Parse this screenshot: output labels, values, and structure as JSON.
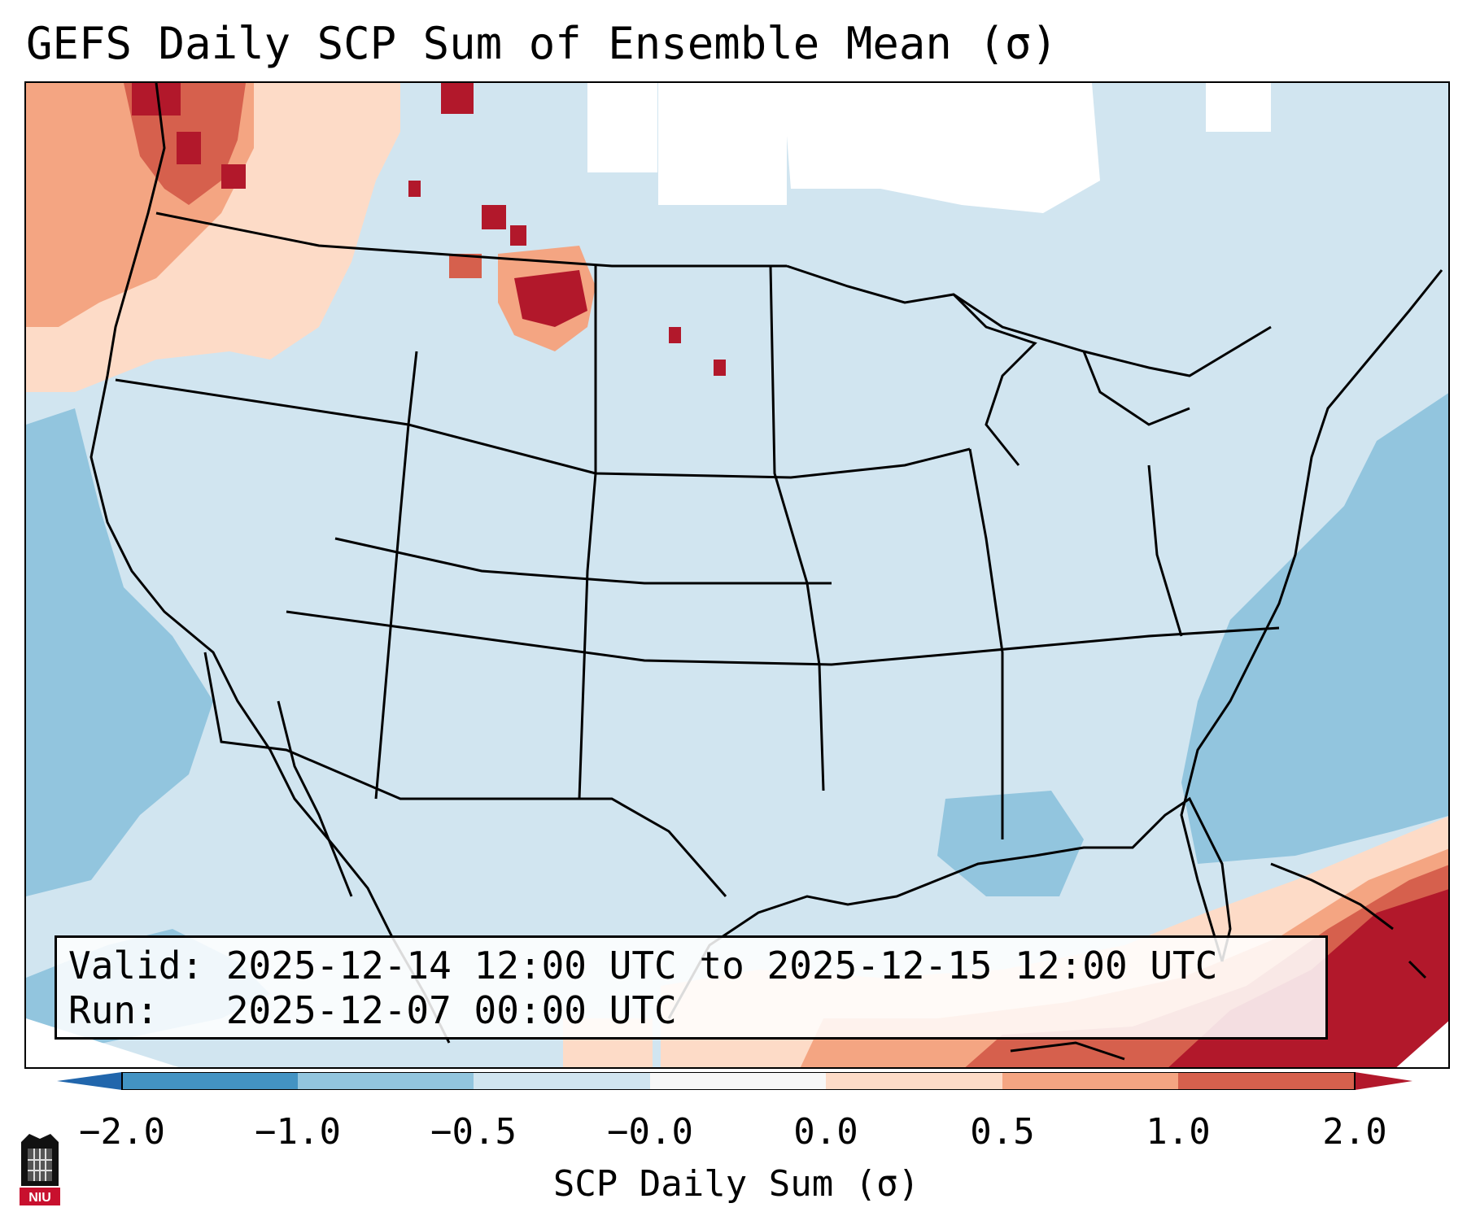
{
  "title": "GEFS Daily SCP Sum of Ensemble Mean (σ)",
  "info": {
    "valid": "Valid: 2025-12-14 12:00 UTC to 2025-12-15 12:00 UTC",
    "run": "Run:   2025-12-07 00:00 UTC"
  },
  "colorbar": {
    "label": "SCP Daily Sum (σ)",
    "ticks": [
      "−2.0",
      "−1.0",
      "−0.5",
      "−0.0",
      "0.0",
      "0.5",
      "1.0",
      "2.0"
    ],
    "colors": [
      "#2166ac",
      "#4393c3",
      "#92c5de",
      "#d1e5f0",
      "#fddbc7",
      "#f4a582",
      "#d6604d",
      "#b2182b"
    ]
  },
  "logo": {
    "text": "NIU"
  }
}
